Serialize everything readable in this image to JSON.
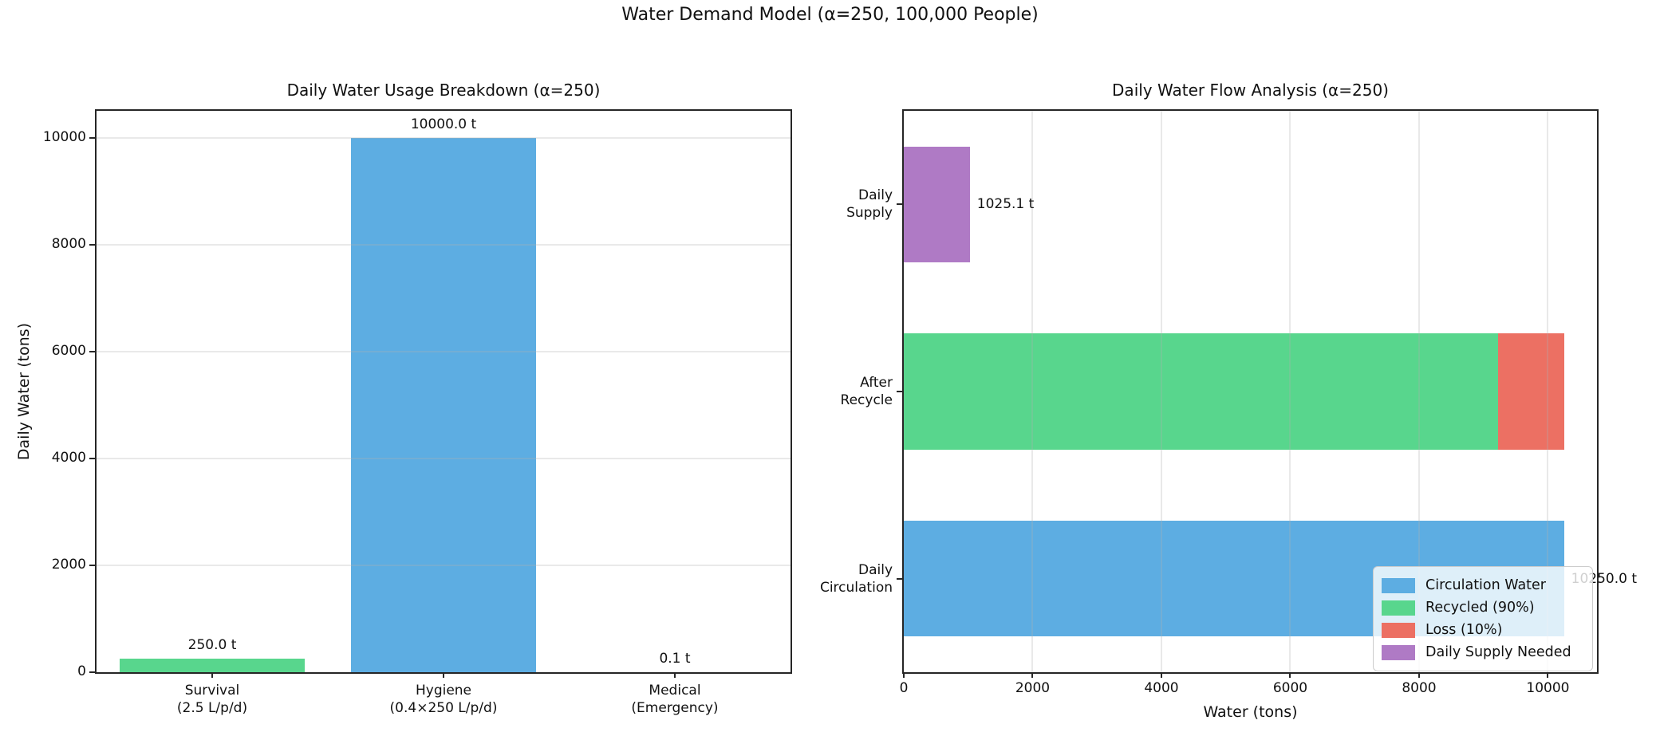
{
  "figure": {
    "suptitle": "Water Demand Model (α=250, 100,000 People)",
    "background": "#ffffff",
    "text_color": "#111111",
    "spine_color": "#262626",
    "grid_color": "#b0b0b0"
  },
  "chart_data": [
    {
      "type": "bar",
      "title": "Daily Water Usage Breakdown (α=250)",
      "xlabel": "",
      "ylabel": "Daily Water (tons)",
      "categories": [
        "Survival\n(2.5 L/p/d)",
        "Hygiene\n(0.4×250 L/p/d)",
        "Medical\n(Emergency)"
      ],
      "values": [
        250.0,
        10000.0,
        0.1
      ],
      "bar_labels": [
        "250.0 t",
        "10000.0 t",
        "0.1 t"
      ],
      "bar_colors": [
        "#58d68d",
        "#5dade2",
        "#ec7063"
      ],
      "yticks": [
        0,
        2000,
        4000,
        6000,
        8000,
        10000
      ],
      "ylim": [
        0,
        10500
      ],
      "grid": "horizontal",
      "legend_position": "none"
    },
    {
      "type": "bar-horizontal-stacked",
      "title": "Daily Water Flow Analysis (α=250)",
      "xlabel": "Water (tons)",
      "ylabel": "",
      "categories": [
        "Daily\nSupply",
        "After\nRecycle",
        "Daily\nCirculation"
      ],
      "series": [
        {
          "name": "Circulation Water",
          "color": "#5dade2",
          "values": [
            0,
            0,
            10250.0
          ]
        },
        {
          "name": "Recycled (90%)",
          "color": "#58d68d",
          "values": [
            0,
            9225.0,
            0
          ]
        },
        {
          "name": "Loss (10%)",
          "color": "#ec7063",
          "values": [
            0,
            1025.0,
            0
          ]
        },
        {
          "name": "Daily Supply Needed",
          "color": "#af7ac5",
          "values": [
            1025.1,
            0,
            0
          ]
        }
      ],
      "bar_labels": [
        "1025.1 t",
        "",
        "10250.0 t"
      ],
      "xticks": [
        0,
        2000,
        4000,
        6000,
        8000,
        10000
      ],
      "xlim": [
        0,
        10762
      ],
      "grid": "vertical",
      "legend_position": "lower right",
      "legend_entries": [
        "Circulation Water",
        "Recycled (90%)",
        "Loss (10%)",
        "Daily Supply Needed"
      ]
    }
  ]
}
